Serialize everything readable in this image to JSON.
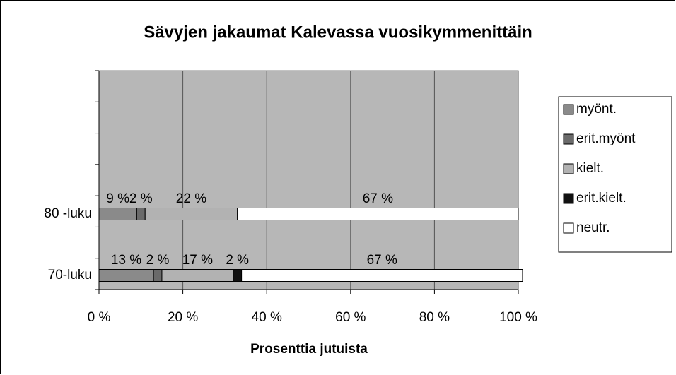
{
  "chart_data": {
    "type": "bar",
    "orientation": "horizontal",
    "stacked": true,
    "title": "Sävyjen jakaumat Kalevassa vuosikymmenittäin",
    "x_label": "Prosenttia jutuista",
    "categories": [
      "70-luku",
      "80 -luku"
    ],
    "series": [
      {
        "name": "myönt.",
        "color": "#8a8a8a",
        "values": [
          13,
          9
        ],
        "value_labels": [
          "13 %",
          "9 %"
        ]
      },
      {
        "name": "erit.myönt",
        "color": "#6a6a6a",
        "values": [
          2,
          2
        ],
        "value_labels": [
          "2 %",
          "2 %"
        ]
      },
      {
        "name": "kielt.",
        "color": "#b2b2b2",
        "values": [
          17,
          22
        ],
        "value_labels": [
          "17 %",
          "22 %"
        ]
      },
      {
        "name": "erit.kielt.",
        "color": "#111111",
        "values": [
          2,
          0
        ],
        "value_labels": [
          "2 %",
          null
        ]
      },
      {
        "name": "neutr.",
        "color": "#ffffff",
        "values": [
          67,
          67
        ],
        "value_labels": [
          "67 %",
          "67 %"
        ]
      }
    ],
    "xlim": [
      0,
      100
    ],
    "xticks": [
      {
        "value": 0,
        "label": "0 %"
      },
      {
        "value": 20,
        "label": "20 %"
      },
      {
        "value": 40,
        "label": "40 %"
      },
      {
        "value": 60,
        "label": "60 %"
      },
      {
        "value": 80,
        "label": "80 %"
      },
      {
        "value": 100,
        "label": "100 %"
      }
    ],
    "grid": true,
    "legend": "right"
  }
}
